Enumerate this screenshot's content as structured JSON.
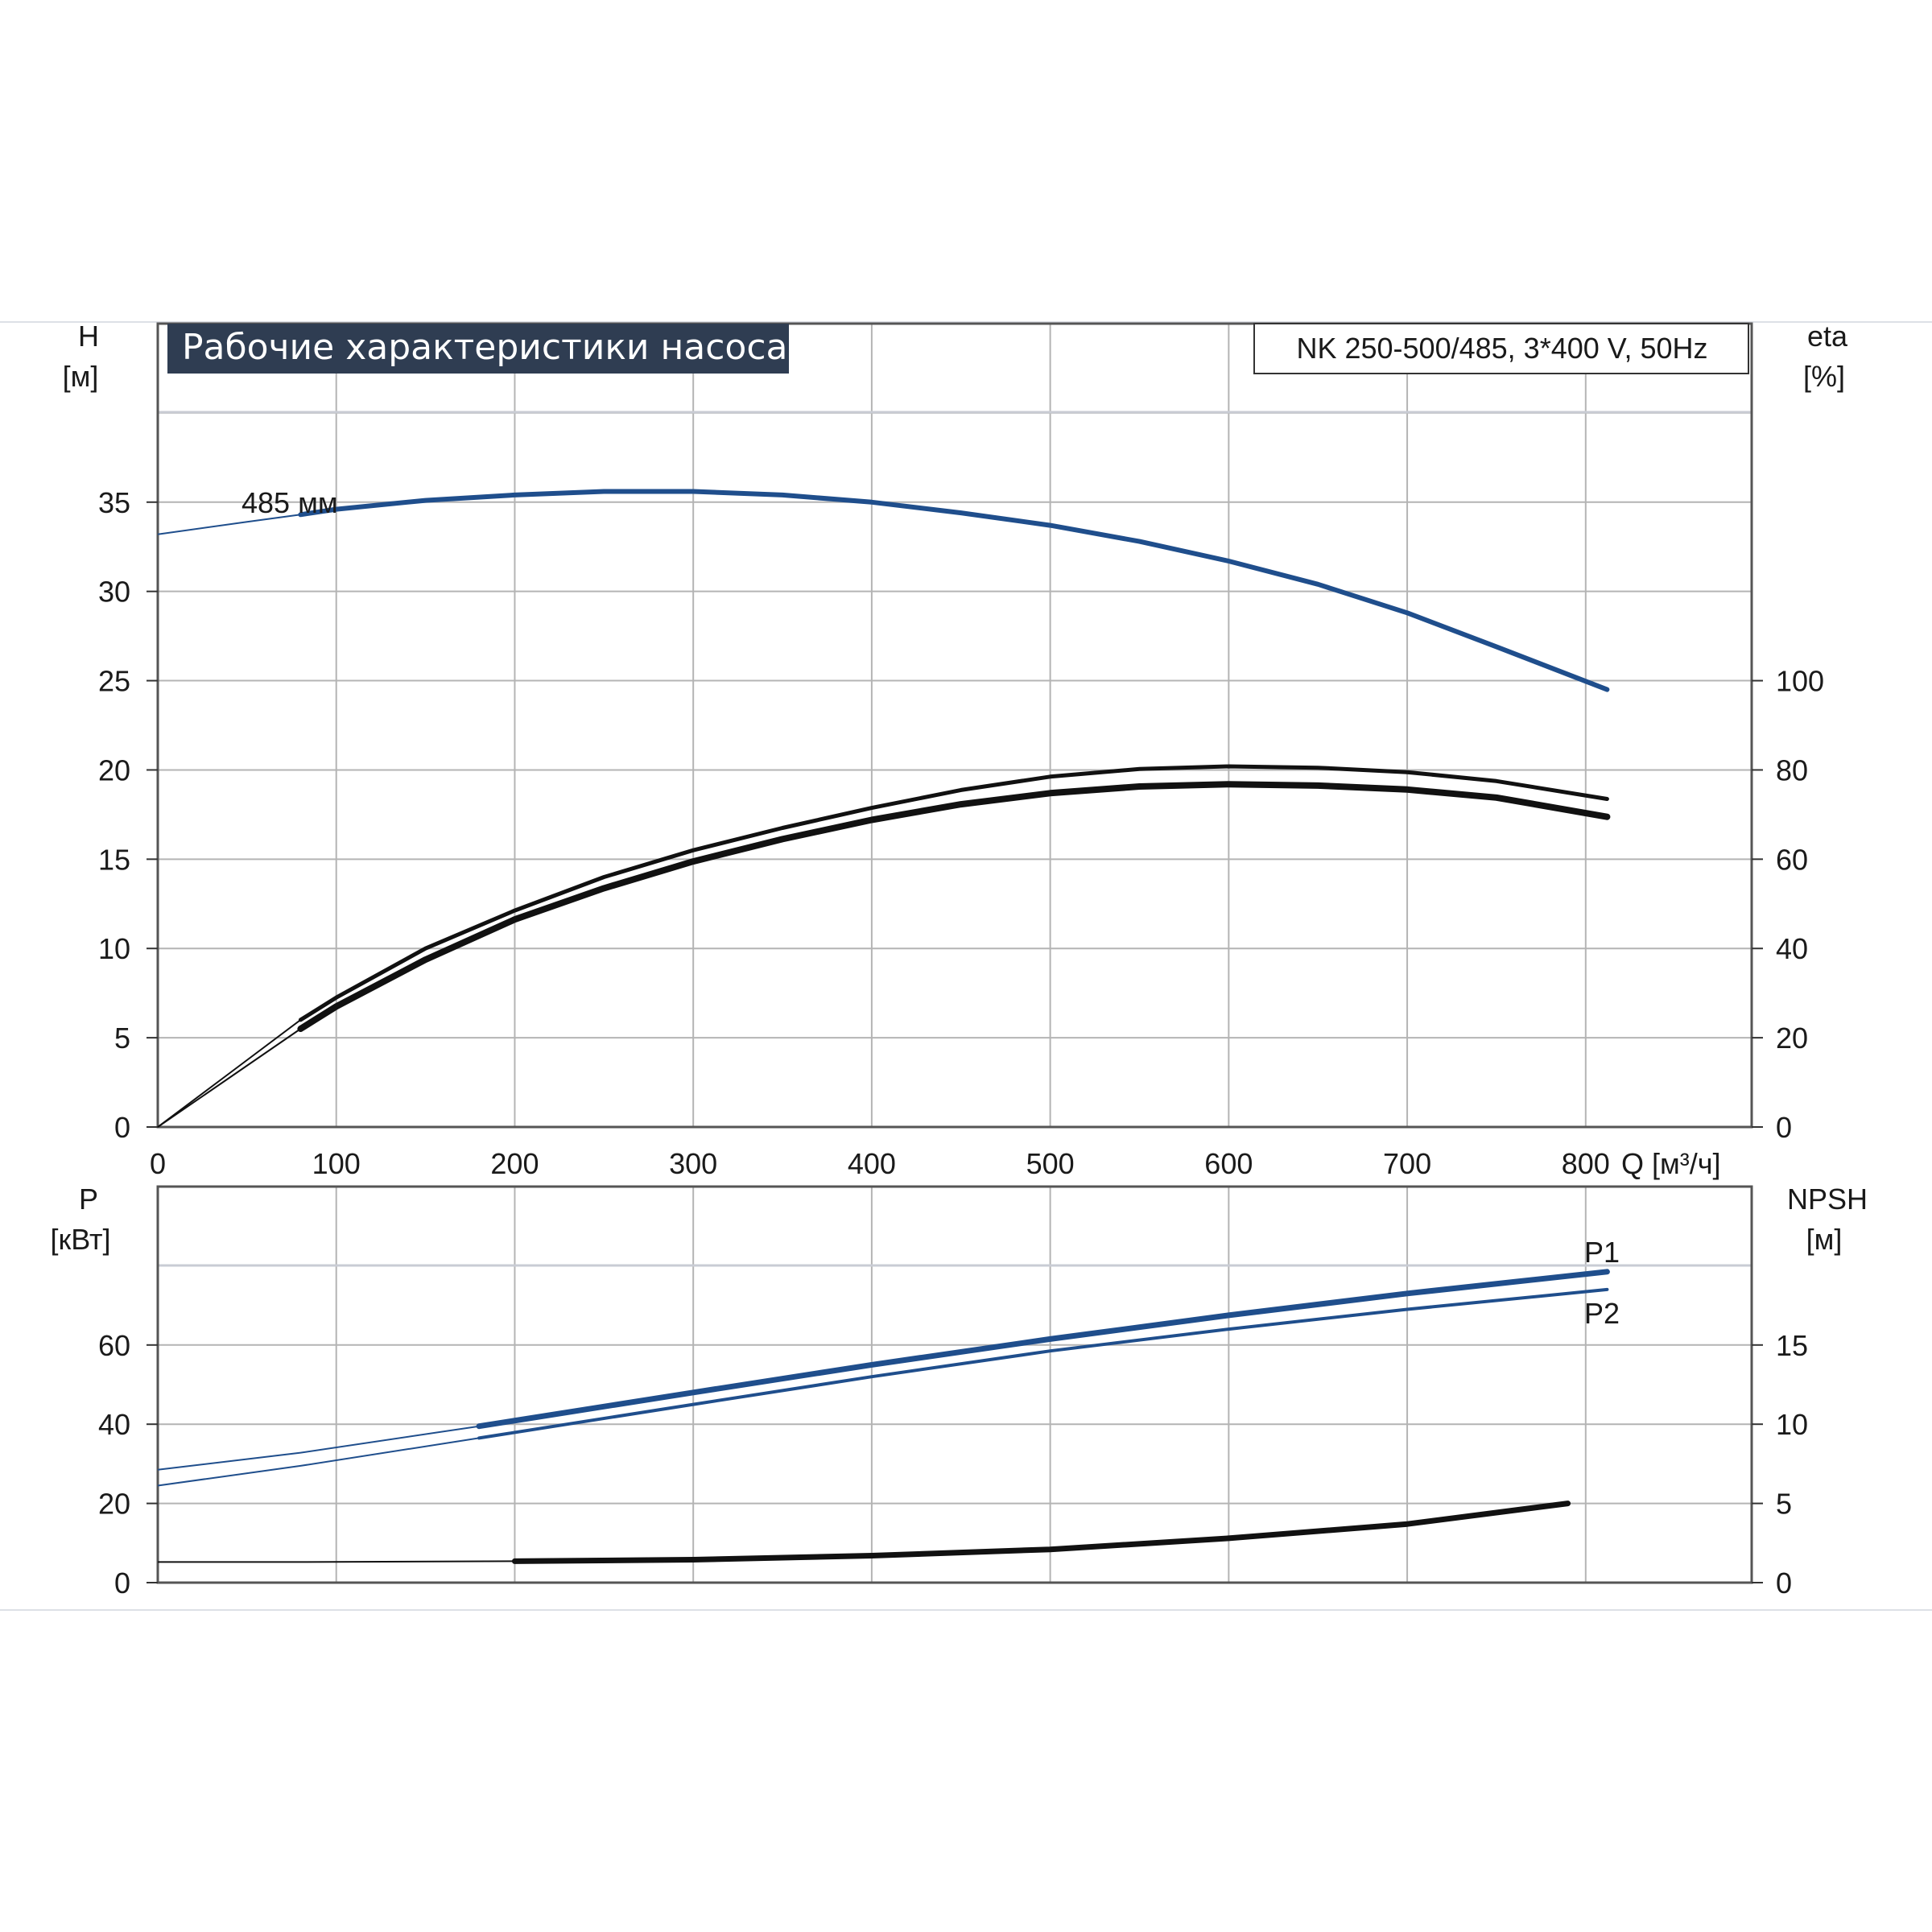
{
  "title": "Рабочие характеристики насоса",
  "model": "NK 250-500/485, 3*400 V, 50Hz",
  "colors": {
    "blue": "#1f4e8c",
    "black": "#111111",
    "title_bg": "#2f3d52"
  },
  "chart_data": [
    {
      "type": "line",
      "id": "head-efficiency",
      "xlabel": "Q [м³/ч]",
      "xlim": [
        0,
        893
      ],
      "x_ticks": [
        0,
        100,
        200,
        300,
        400,
        500,
        600,
        700,
        800
      ],
      "ylabel_left": [
        "H",
        "[м]"
      ],
      "ylim_left": [
        0,
        45
      ],
      "y_ticks_left": [
        0,
        5,
        10,
        15,
        20,
        25,
        30,
        35
      ],
      "ylabel_right": [
        "eta",
        "[%]"
      ],
      "ylim_right": [
        0,
        180
      ],
      "y_ticks_right": [
        0,
        20,
        40,
        60,
        80,
        100
      ],
      "grid": true,
      "series": [
        {
          "name": "485 мм",
          "axis": "left",
          "color": "#1f4e8c",
          "x": [
            0,
            50,
            80,
            100,
            150,
            200,
            250,
            300,
            350,
            400,
            450,
            500,
            550,
            600,
            650,
            700,
            750,
            812
          ],
          "y": [
            33.2,
            33.9,
            34.3,
            34.6,
            35.1,
            35.4,
            35.6,
            35.6,
            35.4,
            35.0,
            34.4,
            33.7,
            32.8,
            31.7,
            30.4,
            28.8,
            26.9,
            24.5
          ]
        },
        {
          "name": "",
          "axis": "right",
          "color": "#111111",
          "x": [
            0,
            40,
            80,
            100,
            150,
            200,
            250,
            300,
            350,
            400,
            450,
            500,
            550,
            600,
            650,
            700,
            750,
            812
          ],
          "y": [
            0,
            12,
            24,
            29,
            40,
            48.5,
            56,
            62,
            67,
            71.5,
            75.5,
            78.5,
            80.2,
            80.8,
            80.5,
            79.5,
            77.5,
            73.5
          ]
        },
        {
          "name": "",
          "axis": "right",
          "color": "#111111",
          "x": [
            0,
            40,
            80,
            100,
            150,
            200,
            250,
            300,
            350,
            400,
            450,
            500,
            550,
            600,
            650,
            700,
            750,
            812
          ],
          "y": [
            0,
            11,
            22,
            27,
            37.5,
            46.5,
            53.5,
            59.5,
            64.5,
            68.8,
            72.3,
            74.8,
            76.3,
            76.8,
            76.5,
            75.6,
            73.8,
            69.5
          ]
        }
      ]
    },
    {
      "type": "line",
      "id": "power-npsh",
      "xlim": [
        0,
        893
      ],
      "ylabel_left": [
        "P",
        "[кВт]"
      ],
      "ylim_left": [
        0,
        100
      ],
      "y_ticks_left": [
        0,
        20,
        40,
        60
      ],
      "ylabel_right": [
        "NPSH",
        "[м]"
      ],
      "ylim_right": [
        0,
        25
      ],
      "y_ticks_right": [
        0,
        5,
        10,
        15
      ],
      "grid": true,
      "series": [
        {
          "name": "P1",
          "axis": "left",
          "color": "#1f4e8c",
          "x": [
            0,
            80,
            180,
            300,
            400,
            500,
            600,
            700,
            812
          ],
          "y": [
            28.5,
            32.8,
            39.5,
            48,
            55,
            61.5,
            67.5,
            73,
            78.5
          ]
        },
        {
          "name": "P2",
          "axis": "left",
          "color": "#1f4e8c",
          "x": [
            0,
            80,
            180,
            300,
            400,
            500,
            600,
            700,
            812
          ],
          "y": [
            24.5,
            29.5,
            36.5,
            45,
            52,
            58.5,
            64,
            69,
            74
          ]
        },
        {
          "name": "",
          "axis": "right",
          "color": "#111111",
          "x": [
            0,
            80,
            200,
            300,
            400,
            500,
            600,
            700,
            790
          ],
          "y": [
            1.3,
            1.3,
            1.35,
            1.45,
            1.7,
            2.1,
            2.8,
            3.7,
            5.0
          ]
        }
      ]
    }
  ]
}
